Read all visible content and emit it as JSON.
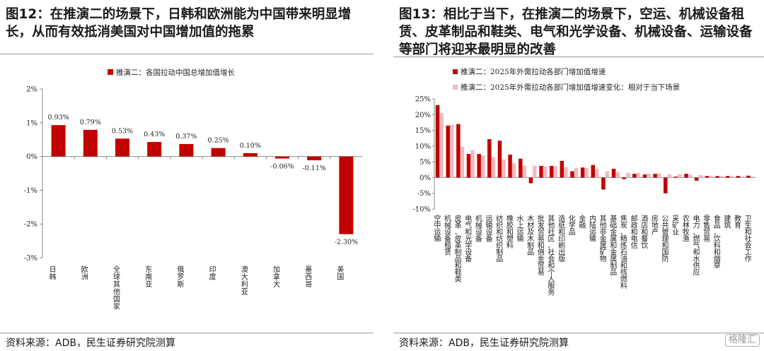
{
  "left": {
    "title": "图12：在推演二的场景下，日韩和欧洲能为中国带来明显增长，从而有效抵消美国对中国增加值的拖累",
    "source": "资料来源：ADB，民生证券研究院测算"
  },
  "right": {
    "title": "图13：相比于当下，在推演二的场景下，空运、机械设备租赁、皮革制品和鞋类、电气和光学设备、机械设备、运输设备等部门将迎来最明显的改善",
    "source": "资料来源：ADB，民生证券研究院测算",
    "watermark": "格隆汇"
  },
  "colors": {
    "dark_red": "#C00000",
    "light_pink": "#F2B8BE",
    "axis": "#888888"
  },
  "chart_data": [
    {
      "type": "bar",
      "title": "",
      "legend": [
        "推演二：各国拉动中国总增加值增长"
      ],
      "legend_position": "top-center",
      "categories": [
        "日韩",
        "欧洲",
        "全球其他国家",
        "东南亚",
        "俄罗斯",
        "印度",
        "澳大利亚",
        "加拿大",
        "墨西哥",
        "美国"
      ],
      "values": [
        0.93,
        0.79,
        0.53,
        0.43,
        0.37,
        0.25,
        0.1,
        -0.06,
        -0.11,
        -2.3
      ],
      "data_labels": [
        "0.93%",
        "0.79%",
        "0.53%",
        "0.43%",
        "0.37%",
        "0.25%",
        "0.10%",
        "-0.06%",
        "-0.11%",
        "-2.30%"
      ],
      "ylim": [
        -3,
        2
      ],
      "yticks": [
        2,
        1,
        0,
        -1,
        -2,
        -3
      ],
      "ytick_labels": [
        "2%",
        "1%",
        "0%",
        "-1%",
        "-2%",
        "-3%"
      ],
      "xlabel": "",
      "ylabel": "",
      "grid": false
    },
    {
      "type": "bar",
      "title": "",
      "legend_position": "top-left",
      "categories": [
        "空中运输",
        "机械设备租赁",
        "皮革、皮革制品和鞋类",
        "电气和光学设备",
        "机械设备",
        "运输设备",
        "纺织和纺织制品",
        "橡胶和塑料",
        "水上运输",
        "木材及木制品",
        "批发贸易和佣金贸易",
        "其他社区、社会和个人服务",
        "造纸和印刷出版",
        "化学品",
        "金融",
        "内陆运输",
        "其他非金属矿物",
        "基础金属和金属制品",
        "焦炭、精炼石油和核燃料",
        "邮政和电信",
        "酒店和餐饮",
        "房地产",
        "公共管理和国防",
        "采矿业",
        "农林牧渔",
        "电力、燃气和水供应",
        "零售贸易",
        "食品、饮料和烟草",
        "建筑",
        "教育",
        "卫生和社会工作"
      ],
      "series": [
        {
          "name": "推演二：2025年外需拉动各部门增加值增速",
          "values": [
            23,
            16.5,
            17,
            7.5,
            7.5,
            12.2,
            11.7,
            7.3,
            6,
            -1.8,
            3.7,
            3.7,
            5.3,
            2,
            3.2,
            4,
            -3.8,
            2.8,
            -0.5,
            1.2,
            1,
            1.2,
            -5,
            0.3,
            1.2,
            -1,
            0.5,
            0.5,
            0.5,
            0.5,
            0.6
          ]
        },
        {
          "name": "推演二：2025年外需拉动各部门增加值增速变化：相对于当下场景",
          "values": [
            20.5,
            16.8,
            9.8,
            8.7,
            7,
            6.5,
            5.8,
            4.5,
            3.8,
            3.8,
            3.6,
            3.6,
            3.3,
            3,
            3,
            2.7,
            2,
            1.8,
            1.5,
            1.5,
            1.3,
            1.3,
            1,
            1,
            0.9,
            0.8,
            0.6,
            0.5,
            0.5,
            0.4,
            0.3
          ]
        }
      ],
      "ylim": [
        -10,
        25
      ],
      "yticks": [
        25,
        20,
        15,
        10,
        5,
        0,
        -5,
        -10
      ],
      "ytick_labels": [
        "25%",
        "20%",
        "15%",
        "10%",
        "5%",
        "0%",
        "-5%",
        "-10%"
      ],
      "xlabel": "",
      "ylabel": "",
      "grid": false
    }
  ]
}
